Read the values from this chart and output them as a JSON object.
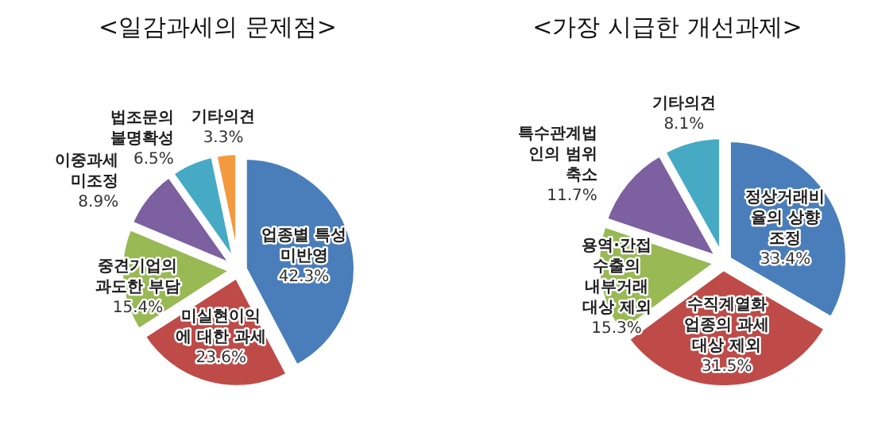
{
  "chart_data": [
    {
      "type": "pie",
      "title": "<일감과세의 문제점>",
      "categories": [
        "업종별 특성\n미반영",
        "미실현이익\n에 대한 과세",
        "중견기업의\n과도한 부담",
        "이중과세\n미조정",
        "법조문의\n불명확성",
        "기타의견"
      ],
      "values": [
        42.3,
        23.6,
        15.4,
        8.9,
        6.5,
        3.3
      ],
      "value_labels": [
        "42.3%",
        "23.6%",
        "15.4%",
        "8.9%",
        "6.5%",
        "3.3%"
      ],
      "colors": [
        "#4a7ebb",
        "#be4b48",
        "#98b954",
        "#7d60a0",
        "#46aac5",
        "#f39a3e"
      ]
    },
    {
      "type": "pie",
      "title": "<가장 시급한 개선과제>",
      "categories": [
        "정상거래비\n율의 상향\n조정",
        "수직계열화\n업종의 과세\n대상 제외",
        "용역·간접\n수출의\n내부거래\n대상 제외",
        "특수관계법\n인의 범위\n축소",
        "기타의견"
      ],
      "values": [
        33.4,
        31.5,
        15.3,
        11.7,
        8.1
      ],
      "value_labels": [
        "33.4%",
        "31.5%",
        "15.3%",
        "11.7%",
        "8.1%"
      ],
      "colors": [
        "#4a7ebb",
        "#be4b48",
        "#98b954",
        "#7d60a0",
        "#46aac5"
      ]
    }
  ]
}
